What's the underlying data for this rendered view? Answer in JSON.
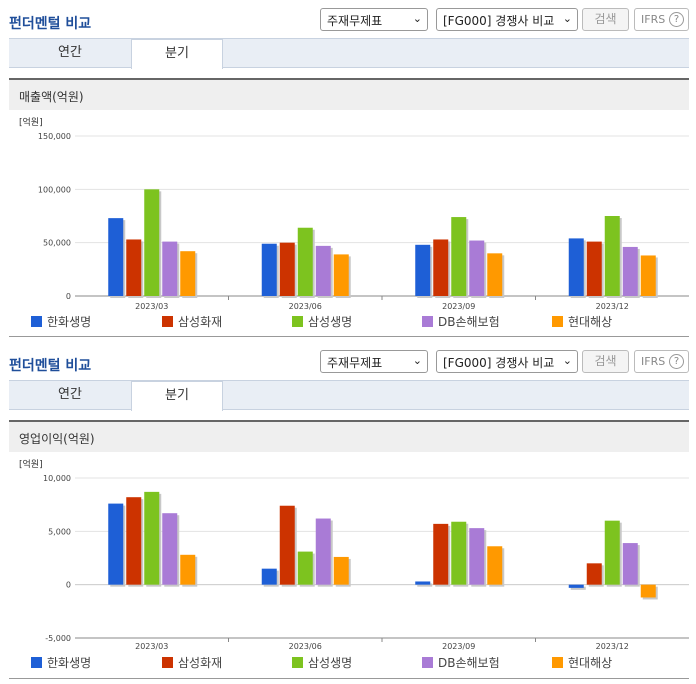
{
  "sections": [
    {
      "header": {
        "title": "펀더멘털 비교",
        "select1": "주재무제표",
        "select2": "[FG000] 경쟁사 비교",
        "search_label": "검색",
        "ifrs_label": "IFRS",
        "help_label": "?"
      },
      "tabs": [
        {
          "label": "연간",
          "active": false
        },
        {
          "label": "분기",
          "active": true
        }
      ],
      "metric_title": "매출액(억원)"
    },
    {
      "header": {
        "title": "펀더멘털 비교",
        "select1": "주재무제표",
        "select2": "[FG000] 경쟁사 비교",
        "search_label": "검색",
        "ifrs_label": "IFRS",
        "help_label": "?"
      },
      "tabs": [
        {
          "label": "연간",
          "active": false
        },
        {
          "label": "분기",
          "active": true
        }
      ],
      "metric_title": "영업이익(억원)"
    }
  ],
  "colors": [
    "#1e5fd6",
    "#cc3300",
    "#7dc31f",
    "#a97bd6",
    "#ff9900"
  ],
  "chart_data": [
    {
      "type": "bar",
      "unit_label": "[억원]",
      "categories": [
        "2023/03",
        "2023/06",
        "2023/09",
        "2023/12"
      ],
      "ylim": [
        0,
        150000
      ],
      "yticks": [
        "150,000",
        "100,000",
        "50,000",
        "0"
      ],
      "ytick_values": [
        150000,
        100000,
        50000,
        0
      ],
      "series": [
        {
          "name": "한화생명",
          "values": [
            73000,
            49000,
            48000,
            54000
          ]
        },
        {
          "name": "삼성화재",
          "values": [
            53000,
            50000,
            53000,
            51000
          ]
        },
        {
          "name": "삼성생명",
          "values": [
            100000,
            64000,
            74000,
            75000
          ]
        },
        {
          "name": "DB손해보험",
          "values": [
            51000,
            47000,
            52000,
            46000
          ]
        },
        {
          "name": "현대해상",
          "values": [
            42000,
            39000,
            40000,
            38000
          ]
        }
      ]
    },
    {
      "type": "bar",
      "unit_label": "[억원]",
      "categories": [
        "2023/03",
        "2023/06",
        "2023/09",
        "2023/12"
      ],
      "ylim": [
        -5000,
        10000
      ],
      "yticks": [
        "10,000",
        "5,000",
        "0",
        "-5,000"
      ],
      "ytick_values": [
        10000,
        5000,
        0,
        -5000
      ],
      "series": [
        {
          "name": "한화생명",
          "values": [
            7600,
            1500,
            300,
            -300
          ]
        },
        {
          "name": "삼성화재",
          "values": [
            8200,
            7400,
            5700,
            2000
          ]
        },
        {
          "name": "삼성생명",
          "values": [
            8700,
            3100,
            5900,
            6000
          ]
        },
        {
          "name": "DB손해보험",
          "values": [
            6700,
            6200,
            5300,
            3900
          ]
        },
        {
          "name": "현대해상",
          "values": [
            2800,
            2600,
            3600,
            -1200
          ]
        }
      ]
    }
  ]
}
